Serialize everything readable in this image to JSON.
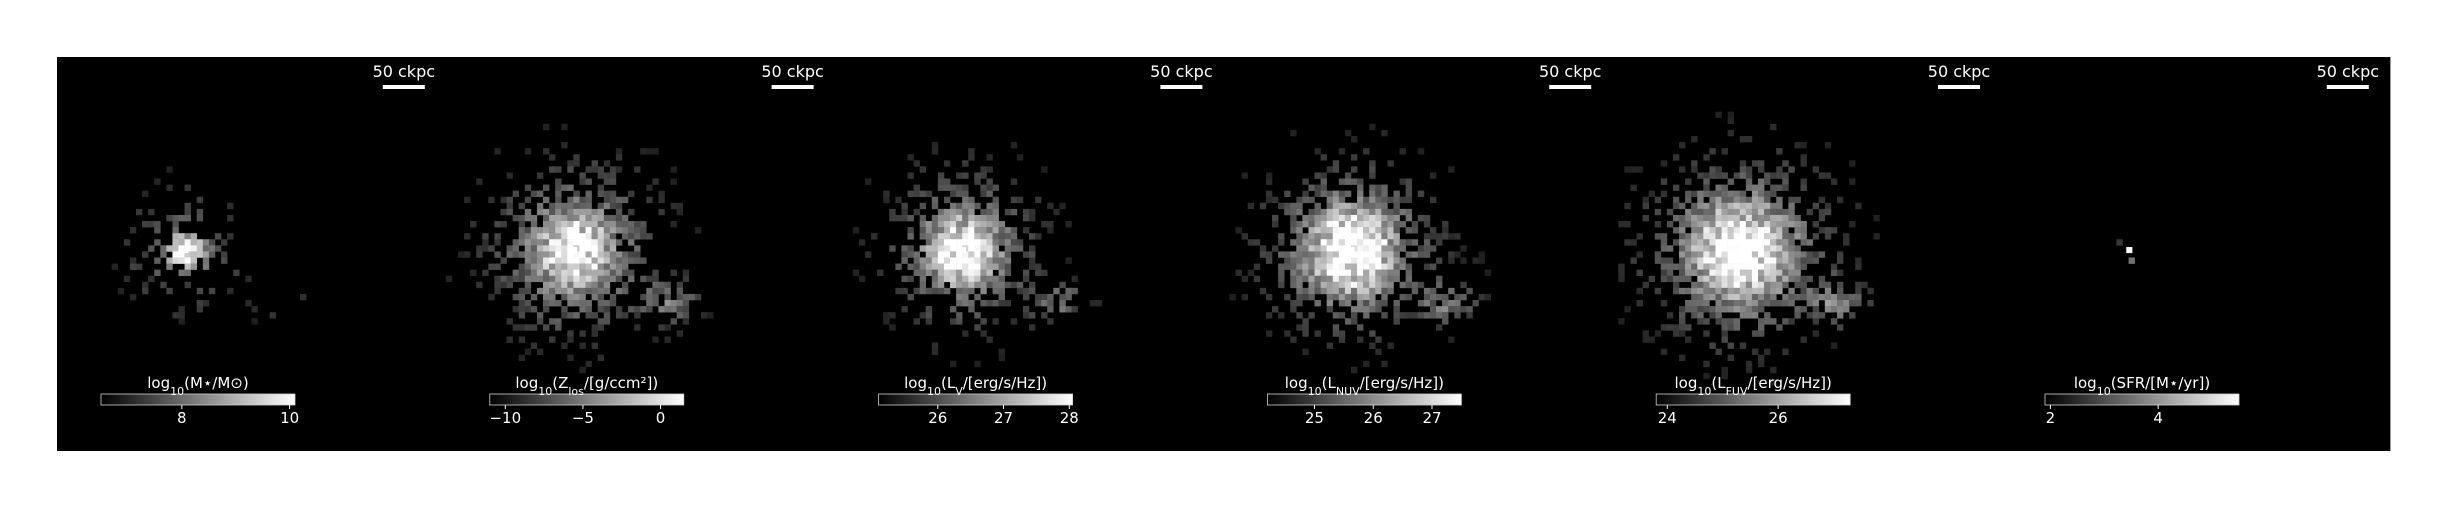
{
  "chart_data": {
    "type": "heatmap",
    "colormap": "gray",
    "panels": [
      {
        "id": "stellar-mass",
        "scalebar_label": "50 ckpc",
        "colorbar": {
          "label_pre": "log",
          "label_sub": "10",
          "label_post": "(M⋆/M⊙)",
          "vmin": 6.5,
          "vmax": 10.1,
          "ticks": [
            {
              "value": 8,
              "label": "8"
            },
            {
              "value": 10,
              "label": "10"
            }
          ]
        },
        "emission": {
          "peak": 0.95,
          "core_sigma": 0.03,
          "halo_sigma": 0.09,
          "halo_amp": 0.35,
          "density": 0.55,
          "tail_amp": 0.12
        }
      },
      {
        "id": "metallicity-los",
        "scalebar_label": "50 ckpc",
        "colorbar": {
          "label_pre": "log",
          "label_sub": "10",
          "label_post": "(Z_los/[g/ccm²])",
          "vmin": -11,
          "vmax": 1.5,
          "ticks": [
            {
              "value": -10,
              "label": "−10"
            },
            {
              "value": -5,
              "label": "−5"
            },
            {
              "value": 0,
              "label": "0"
            }
          ]
        },
        "emission": {
          "peak": 1.0,
          "core_sigma": 0.05,
          "halo_sigma": 0.13,
          "halo_amp": 0.55,
          "density": 0.85,
          "tail_amp": 0.35
        }
      },
      {
        "id": "luminosity-v",
        "scalebar_label": "50 ckpc",
        "colorbar": {
          "label_pre": "log",
          "label_sub": "10",
          "label_post": "(L_V/[erg/s/Hz])",
          "vmin": 25.1,
          "vmax": 28.05,
          "ticks": [
            {
              "value": 26,
              "label": "26"
            },
            {
              "value": 27,
              "label": "27"
            },
            {
              "value": 28,
              "label": "28"
            }
          ]
        },
        "emission": {
          "peak": 1.0,
          "core_sigma": 0.05,
          "halo_sigma": 0.12,
          "halo_amp": 0.5,
          "density": 0.8,
          "tail_amp": 0.32
        }
      },
      {
        "id": "luminosity-nuv",
        "scalebar_label": "50 ckpc",
        "colorbar": {
          "label_pre": "log",
          "label_sub": "10",
          "label_post": "(L_NUV/[erg/s/Hz])",
          "vmin": 24.2,
          "vmax": 27.5,
          "ticks": [
            {
              "value": 25,
              "label": "25"
            },
            {
              "value": 26,
              "label": "26"
            },
            {
              "value": 27,
              "label": "27"
            }
          ]
        },
        "emission": {
          "peak": 1.0,
          "core_sigma": 0.06,
          "halo_sigma": 0.13,
          "halo_amp": 0.6,
          "density": 0.9,
          "tail_amp": 0.38
        }
      },
      {
        "id": "luminosity-fuv",
        "scalebar_label": "50 ckpc",
        "colorbar": {
          "label_pre": "log",
          "label_sub": "10",
          "label_post": "(L_FUV/[erg/s/Hz])",
          "vmin": 23.8,
          "vmax": 27.3,
          "ticks": [
            {
              "value": 24,
              "label": "24"
            },
            {
              "value": 26,
              "label": "26"
            }
          ]
        },
        "emission": {
          "peak": 1.0,
          "core_sigma": 0.065,
          "halo_sigma": 0.14,
          "halo_amp": 0.62,
          "density": 0.92,
          "tail_amp": 0.4
        }
      },
      {
        "id": "star-formation-rate",
        "scalebar_label": "50 ckpc",
        "colorbar": {
          "label_pre": "log",
          "label_sub": "10",
          "label_post": "(SFR/[M⋆/yr])",
          "vmin": 1.9,
          "vmax": 5.5,
          "ticks": [
            {
              "value": 2,
              "label": "2"
            },
            {
              "value": 4,
              "label": "4"
            }
          ]
        },
        "emission": {
          "peak": 1.0,
          "core_sigma": 0.012,
          "halo_sigma": 0.03,
          "halo_amp": 0.3,
          "density": 0.06,
          "tail_amp": 0.05
        }
      }
    ]
  }
}
